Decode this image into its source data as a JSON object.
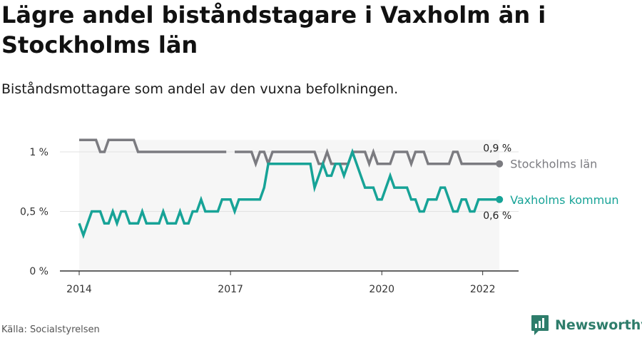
{
  "title": "Lägre andel biståndstagare i Vaxholm än i Stockholms län",
  "subtitle": "Biståndsmottagare som andel av den vuxna befolkningen.",
  "source": "Källa: Socialstyrelsen",
  "brand": "Newsworthy",
  "colors": {
    "vaxholm": "#17a397",
    "stockholm": "#7b7b80",
    "band": "#f6f6f6",
    "grid": "#e2e2e2",
    "axis": "#333333",
    "brand": "#2e7d6b"
  },
  "chart_data": {
    "type": "line",
    "title": "Lägre andel biståndstagare i Vaxholm än i Stockholms län",
    "subtitle": "Biståndsmottagare som andel av den vuxna befolkningen.",
    "unit": "%",
    "xlim": [
      2014,
      2022.33
    ],
    "ylim": [
      0,
      1.1
    ],
    "y_ticks": [
      0,
      0.5,
      1
    ],
    "y_tick_labels": [
      "0 %",
      "0,5 %",
      "1 %"
    ],
    "x_ticks": [
      2014,
      2017,
      2020,
      2022
    ],
    "x_tick_labels": [
      "2014",
      "2017",
      "2020",
      "2022"
    ],
    "grid": true,
    "series": [
      {
        "name": "Stockholms län",
        "color": "#7b7b80",
        "end_value_label": "0,9 %",
        "start": 2014,
        "step": 0.08333,
        "values": [
          1.1,
          1.1,
          1.1,
          1.1,
          1.1,
          1.0,
          1.0,
          1.1,
          1.1,
          1.1,
          1.1,
          1.1,
          1.1,
          1.1,
          1.0,
          1.0,
          1.0,
          1.0,
          1.0,
          1.0,
          1.0,
          1.0,
          1.0,
          1.0,
          1.0,
          1.0,
          1.0,
          1.0,
          1.0,
          1.0,
          1.0,
          1.0,
          1.0,
          1.0,
          1.0,
          1.0,
          null,
          1.0,
          1.0,
          1.0,
          1.0,
          1.0,
          0.9,
          1.0,
          1.0,
          0.9,
          1.0,
          1.0,
          1.0,
          1.0,
          1.0,
          1.0,
          1.0,
          1.0,
          1.0,
          1.0,
          1.0,
          0.9,
          0.9,
          1.0,
          0.9,
          0.9,
          0.9,
          0.9,
          0.9,
          1.0,
          1.0,
          1.0,
          1.0,
          0.9,
          1.0,
          0.9,
          0.9,
          0.9,
          0.9,
          1.0,
          1.0,
          1.0,
          1.0,
          0.9,
          1.0,
          1.0,
          1.0,
          0.9,
          0.9,
          0.9,
          0.9,
          0.9,
          0.9,
          1.0,
          1.0,
          0.9,
          0.9,
          0.9,
          0.9,
          0.9,
          0.9,
          0.9,
          0.9,
          0.9,
          0.9
        ]
      },
      {
        "name": "Vaxholms kommun",
        "color": "#17a397",
        "end_value_label": "0,6 %",
        "start": 2014,
        "step": 0.08333,
        "values": [
          0.4,
          0.3,
          0.4,
          0.5,
          0.5,
          0.5,
          0.4,
          0.4,
          0.5,
          0.4,
          0.5,
          0.5,
          0.4,
          0.4,
          0.4,
          0.5,
          0.4,
          0.4,
          0.4,
          0.4,
          0.5,
          0.4,
          0.4,
          0.4,
          0.5,
          0.4,
          0.4,
          0.5,
          0.5,
          0.6,
          0.5,
          0.5,
          0.5,
          0.5,
          0.6,
          0.6,
          0.6,
          0.5,
          0.6,
          0.6,
          0.6,
          0.6,
          0.6,
          0.6,
          0.7,
          0.9,
          0.9,
          0.9,
          0.9,
          0.9,
          0.9,
          0.9,
          0.9,
          0.9,
          0.9,
          0.9,
          0.7,
          0.8,
          0.9,
          0.8,
          0.8,
          0.9,
          0.9,
          0.8,
          0.9,
          1.0,
          0.9,
          0.8,
          0.7,
          0.7,
          0.7,
          0.6,
          0.6,
          0.7,
          0.8,
          0.7,
          0.7,
          0.7,
          0.7,
          0.6,
          0.6,
          0.5,
          0.5,
          0.6,
          0.6,
          0.6,
          0.7,
          0.7,
          0.6,
          0.5,
          0.5,
          0.6,
          0.6,
          0.5,
          0.5,
          0.6,
          0.6,
          0.6,
          0.6,
          0.6,
          0.6
        ]
      }
    ]
  }
}
